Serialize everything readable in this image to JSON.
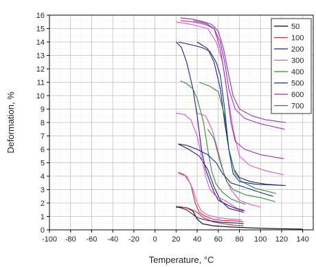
{
  "chart_data": {
    "type": "line",
    "title": "",
    "xlabel": "Temperature, °C",
    "ylabel": "Deformation, %",
    "xlim": [
      -100,
      150
    ],
    "ylim": [
      0,
      16
    ],
    "xticks": [
      -100,
      -80,
      -60,
      -40,
      -20,
      0,
      20,
      40,
      60,
      80,
      100,
      120,
      140
    ],
    "yticks": [
      0,
      1,
      2,
      3,
      4,
      5,
      6,
      7,
      8,
      9,
      10,
      11,
      12,
      13,
      14,
      15,
      16
    ],
    "grid": true,
    "legend_position": "top-right",
    "series": [
      {
        "name": "50",
        "color": "#000000",
        "curves": [
          [
            [
              20,
              1.7
            ],
            [
              30,
              1.65
            ],
            [
              36,
              1.4
            ],
            [
              40,
              0.8
            ],
            [
              45,
              0.45
            ],
            [
              55,
              0.3
            ],
            [
              70,
              0.22
            ],
            [
              90,
              0.15
            ],
            [
              110,
              0.1
            ],
            [
              140,
              0.05
            ]
          ]
        ]
      },
      {
        "name": "100",
        "color": "#d03030",
        "curves": [
          [
            [
              22,
              4.3
            ],
            [
              28,
              4.1
            ],
            [
              34,
              3.4
            ],
            [
              38,
              2.0
            ],
            [
              42,
              1.3
            ],
            [
              48,
              1.0
            ],
            [
              55,
              0.8
            ],
            [
              65,
              0.7
            ],
            [
              80,
              0.65
            ],
            [
              84,
              0.6
            ]
          ],
          [
            [
              22,
              1.75
            ],
            [
              32,
              1.6
            ],
            [
              40,
              1.3
            ],
            [
              46,
              0.9
            ],
            [
              55,
              0.6
            ],
            [
              65,
              0.45
            ],
            [
              75,
              0.35
            ],
            [
              84,
              0.3
            ]
          ]
        ]
      },
      {
        "name": "200",
        "color": "#1c1c8c",
        "curves": [
          [
            [
              20,
              14.0
            ],
            [
              25,
              13.6
            ],
            [
              30,
              12.5
            ],
            [
              36,
              10.5
            ],
            [
              40,
              8.5
            ],
            [
              44,
              6.0
            ],
            [
              48,
              4.5
            ],
            [
              52,
              3.6
            ],
            [
              56,
              2.8
            ],
            [
              60,
              2.2
            ],
            [
              70,
              1.8
            ],
            [
              80,
              1.5
            ],
            [
              85,
              1.4
            ]
          ],
          [
            [
              40,
              14.0
            ],
            [
              50,
              13.5
            ],
            [
              56,
              12.5
            ],
            [
              62,
              10.5
            ],
            [
              66,
              8.0
            ],
            [
              70,
              6.0
            ],
            [
              75,
              4.5
            ],
            [
              80,
              3.9
            ],
            [
              90,
              3.6
            ],
            [
              105,
              3.4
            ],
            [
              122,
              3.3
            ]
          ],
          [
            [
              22,
              6.4
            ],
            [
              32,
              6.0
            ],
            [
              42,
              5.5
            ],
            [
              50,
              4.5
            ],
            [
              56,
              3.2
            ],
            [
              62,
              2.2
            ],
            [
              70,
              1.6
            ],
            [
              84,
              1.3
            ]
          ],
          [
            [
              20,
              1.75
            ],
            [
              30,
              1.5
            ],
            [
              35,
              1.2
            ],
            [
              40,
              0.9
            ],
            [
              50,
              0.7
            ],
            [
              65,
              0.55
            ],
            [
              80,
              0.5
            ],
            [
              84,
              0.45
            ]
          ]
        ]
      },
      {
        "name": "300",
        "color": "#e050d0",
        "curves": [
          [
            [
              20,
              8.7
            ],
            [
              28,
              8.6
            ],
            [
              34,
              8.2
            ],
            [
              40,
              7.0
            ],
            [
              44,
              5.5
            ],
            [
              48,
              4.0
            ],
            [
              52,
              3.0
            ],
            [
              58,
              2.5
            ],
            [
              66,
              2.2
            ],
            [
              78,
              1.6
            ],
            [
              84,
              1.5
            ]
          ],
          [
            [
              40,
              8.7
            ],
            [
              48,
              8.5
            ],
            [
              54,
              7.5
            ],
            [
              60,
              5.8
            ],
            [
              66,
              4.0
            ],
            [
              72,
              3.0
            ],
            [
              80,
              2.2
            ],
            [
              90,
              1.9
            ],
            [
              100,
              1.7
            ]
          ],
          [
            [
              20,
              15.5
            ],
            [
              35,
              15.3
            ],
            [
              50,
              15.0
            ],
            [
              58,
              14.0
            ],
            [
              64,
              12.5
            ],
            [
              70,
              9.5
            ],
            [
              74,
              7.5
            ],
            [
              80,
              5.5
            ],
            [
              90,
              4.8
            ],
            [
              105,
              4.4
            ],
            [
              122,
              4.1
            ]
          ],
          [
            [
              22,
              4.2
            ],
            [
              30,
              4.0
            ],
            [
              36,
              3.0
            ],
            [
              40,
              2.0
            ],
            [
              44,
              1.4
            ],
            [
              50,
              1.1
            ],
            [
              60,
              0.9
            ],
            [
              72,
              0.8
            ],
            [
              82,
              0.75
            ]
          ]
        ]
      },
      {
        "name": "400",
        "color": "#2f8a2f",
        "curves": [
          [
            [
              24,
              11.1
            ],
            [
              30,
              10.9
            ],
            [
              36,
              10.5
            ],
            [
              40,
              9.8
            ],
            [
              46,
              8.0
            ],
            [
              50,
              6.0
            ],
            [
              54,
              4.3
            ],
            [
              58,
              3.4
            ],
            [
              64,
              2.8
            ],
            [
              72,
              2.3
            ],
            [
              82,
              2.0
            ],
            [
              86,
              1.9
            ]
          ],
          [
            [
              42,
              11.0
            ],
            [
              52,
              10.7
            ],
            [
              60,
              10.3
            ],
            [
              66,
              8.5
            ],
            [
              70,
              6.0
            ],
            [
              76,
              4.2
            ],
            [
              82,
              3.6
            ],
            [
              95,
              3.1
            ],
            [
              110,
              2.8
            ],
            [
              115,
              2.7
            ]
          ],
          [
            [
              50,
              7.5
            ],
            [
              56,
              6.8
            ],
            [
              62,
              5.0
            ],
            [
              68,
              3.6
            ],
            [
              74,
              3.0
            ],
            [
              86,
              2.6
            ],
            [
              100,
              2.4
            ],
            [
              114,
              2.1
            ]
          ]
        ]
      },
      {
        "name": "500",
        "color": "#1b2a8a",
        "curves": [
          [
            [
              22,
              14.0
            ],
            [
              34,
              13.8
            ],
            [
              44,
              13.6
            ],
            [
              52,
              13.3
            ],
            [
              58,
              12.5
            ],
            [
              62,
              11.5
            ],
            [
              66,
              9.0
            ],
            [
              70,
              6.0
            ],
            [
              74,
              4.2
            ],
            [
              80,
              3.6
            ],
            [
              95,
              3.4
            ],
            [
              110,
              3.35
            ],
            [
              124,
              3.3
            ]
          ],
          [
            [
              22,
              6.4
            ],
            [
              30,
              6.3
            ],
            [
              40,
              6.0
            ],
            [
              50,
              5.6
            ],
            [
              58,
              5.0
            ],
            [
              64,
              4.2
            ],
            [
              72,
              3.5
            ],
            [
              84,
              3.2
            ],
            [
              95,
              2.9
            ],
            [
              112,
              2.5
            ]
          ]
        ]
      },
      {
        "name": "600",
        "color": "#9b2f9b",
        "curves": [
          [
            [
              24,
              15.8
            ],
            [
              36,
              15.7
            ],
            [
              46,
              15.5
            ],
            [
              54,
              15.3
            ],
            [
              60,
              14.8
            ],
            [
              65,
              13.5
            ],
            [
              70,
              11.5
            ],
            [
              74,
              10.0
            ],
            [
              80,
              9.0
            ],
            [
              92,
              8.5
            ],
            [
              105,
              8.2
            ],
            [
              124,
              8.0
            ]
          ]
        ]
      },
      {
        "name": "700",
        "color": "#9b30c0",
        "curves": [
          [
            [
              24,
              15.6
            ],
            [
              36,
              15.5
            ],
            [
              48,
              15.3
            ],
            [
              56,
              15.0
            ],
            [
              62,
              14.0
            ],
            [
              66,
              12.5
            ],
            [
              70,
              10.5
            ],
            [
              76,
              9.0
            ],
            [
              85,
              8.3
            ],
            [
              100,
              7.9
            ],
            [
              123,
              7.5
            ]
          ],
          [
            [
              36,
              15.6
            ],
            [
              48,
              15.4
            ],
            [
              56,
              15.0
            ],
            [
              62,
              13.5
            ],
            [
              68,
              10.5
            ],
            [
              72,
              8.0
            ],
            [
              76,
              6.6
            ],
            [
              85,
              6.0
            ],
            [
              100,
              5.6
            ],
            [
              122,
              5.3
            ]
          ]
        ]
      }
    ]
  }
}
